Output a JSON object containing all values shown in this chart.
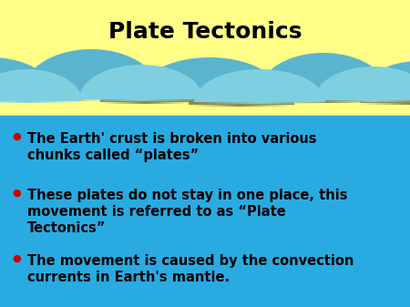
{
  "title": "Plate Tectonics",
  "title_fontsize": 18,
  "title_fontweight": "bold",
  "title_color": "#000000",
  "sky_color": "#ffff88",
  "teal_color": "#29abe2",
  "bullet_color": "#cc0000",
  "text_color": "#000000",
  "text_fontsize": 10.5,
  "bullet_points": [
    "The Earth' crust is broken into various\nchunks called “plates”",
    "These plates do not stay in one place, this\nmovement is referred to as “Plate\nTectonics”",
    "The movement is caused by the convection\ncurrents in Earth's mantle."
  ],
  "olive_color": "#8a8a50",
  "mid_blue": "#5ab4ce",
  "light_blue": "#7ecfe0",
  "wave_teal": "#29abe2"
}
